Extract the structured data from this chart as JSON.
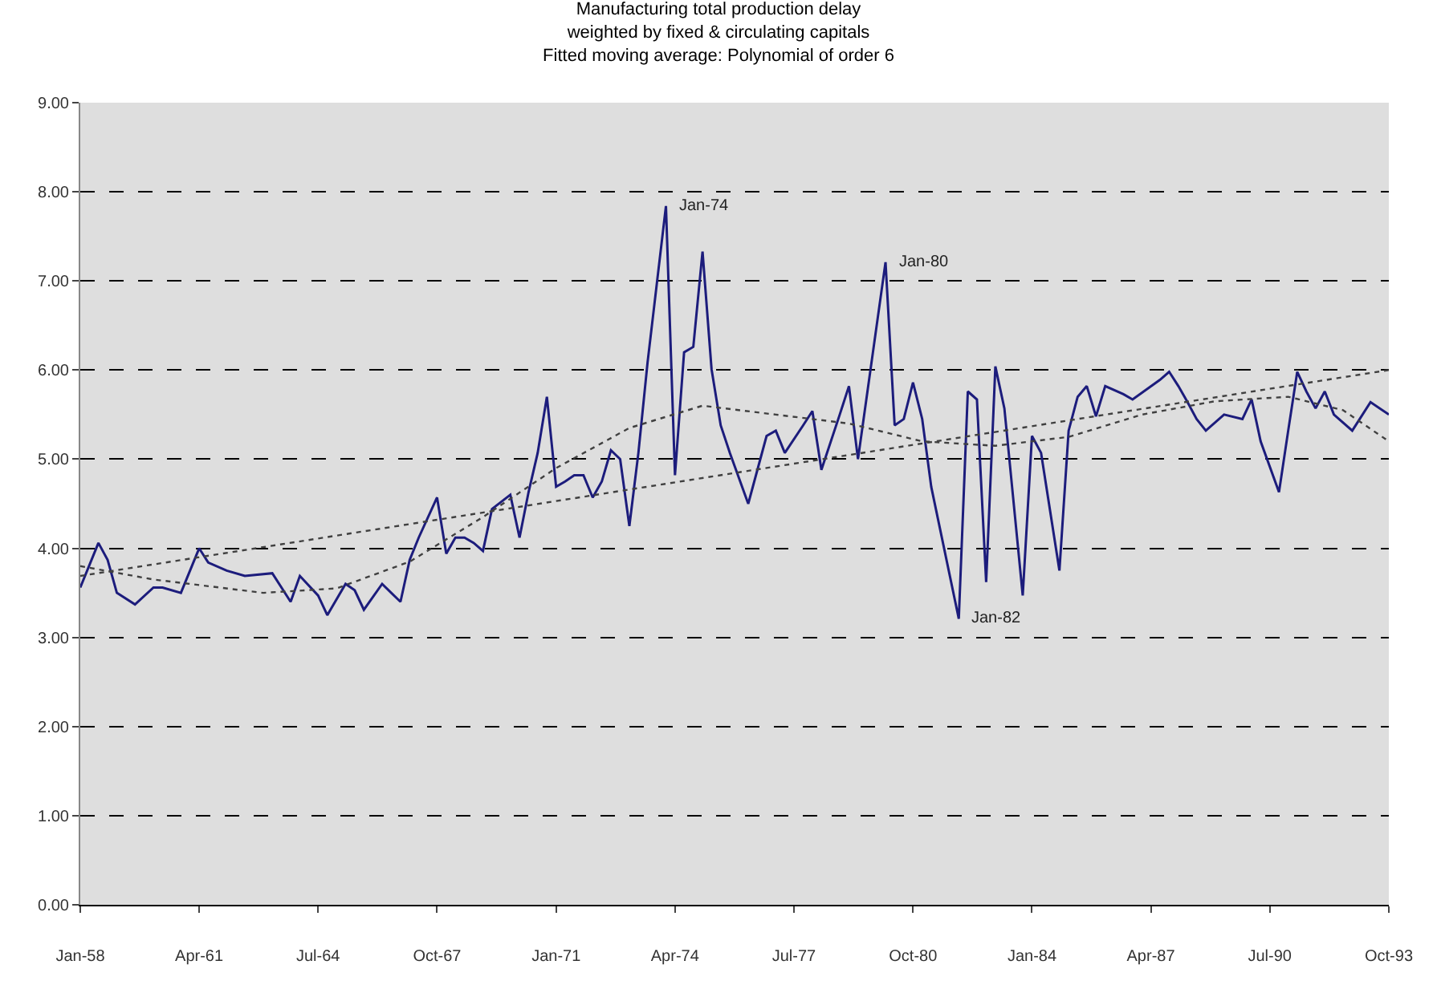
{
  "chart_data": {
    "type": "line",
    "title": "Manufacturing total production delay\nweighted by fixed & circulating capitals\nFitted moving average: Polynomial of order 6",
    "series": [
      {
        "color": "#1c1c7c",
        "x": [
          "1958-01",
          "1958-07",
          "1958-10",
          "1959-01",
          "1959-07",
          "1960-01",
          "1960-04",
          "1960-10",
          "1961-04",
          "1961-07",
          "1962-01",
          "1962-07",
          "1963-04",
          "1963-10",
          "1964-01",
          "1964-07",
          "1964-10",
          "1965-04",
          "1965-07",
          "1965-10",
          "1966-04",
          "1966-07",
          "1966-10",
          "1967-01",
          "1967-04",
          "1967-10",
          "1968-01",
          "1968-04",
          "1968-07",
          "1968-10",
          "1969-01",
          "1969-04",
          "1969-10",
          "1970-01",
          "1970-04",
          "1970-07",
          "1970-10",
          "1971-01",
          "1971-04",
          "1971-07",
          "1971-10",
          "1972-01",
          "1972-04",
          "1972-07",
          "1972-10",
          "1973-01",
          "1973-04",
          "1973-07",
          "1973-10",
          "1974-01",
          "1974-04",
          "1974-07",
          "1974-10",
          "1975-01",
          "1975-04",
          "1975-07",
          "1975-10",
          "1976-04",
          "1976-10",
          "1977-01",
          "1977-04",
          "1977-10",
          "1978-01",
          "1978-04",
          "1978-10",
          "1979-01",
          "1979-04",
          "1980-01",
          "1980-04",
          "1980-07",
          "1980-10",
          "1981-01",
          "1981-04",
          "1982-01",
          "1982-04",
          "1982-07",
          "1982-10",
          "1983-01",
          "1983-04",
          "1983-10",
          "1984-01",
          "1984-04",
          "1984-10",
          "1985-01",
          "1985-04",
          "1985-07",
          "1985-10",
          "1986-01",
          "1986-07",
          "1986-10",
          "1987-07",
          "1987-10",
          "1988-01",
          "1988-04",
          "1988-07",
          "1988-10",
          "1989-04",
          "1989-10",
          "1990-01",
          "1990-04",
          "1990-10",
          "1991-01",
          "1991-04",
          "1991-07",
          "1991-10",
          "1992-01",
          "1992-04",
          "1992-10",
          "1993-04",
          "1993-10"
        ],
        "values": [
          3.56,
          4.06,
          3.87,
          3.5,
          3.37,
          3.56,
          3.56,
          3.5,
          4.0,
          3.84,
          3.75,
          3.69,
          3.72,
          3.4,
          3.69,
          3.47,
          3.25,
          3.6,
          3.53,
          3.31,
          3.6,
          3.5,
          3.4,
          3.87,
          4.12,
          4.57,
          3.94,
          4.12,
          4.12,
          4.06,
          3.97,
          4.44,
          4.6,
          4.12,
          4.63,
          5.07,
          5.7,
          4.69,
          4.75,
          4.82,
          4.82,
          4.57,
          4.75,
          5.1,
          5.0,
          4.25,
          5.07,
          6.08,
          6.96,
          7.84,
          4.82,
          6.2,
          6.26,
          7.33,
          6.01,
          5.38,
          5.07,
          4.5,
          5.26,
          5.32,
          5.07,
          5.38,
          5.54,
          4.88,
          5.5,
          5.82,
          5.0,
          7.21,
          5.38,
          5.45,
          5.86,
          5.45,
          4.69,
          3.21,
          5.76,
          5.67,
          3.62,
          6.04,
          5.57,
          3.47,
          5.26,
          5.07,
          3.75,
          5.32,
          5.7,
          5.82,
          5.48,
          5.82,
          5.73,
          5.67,
          5.89,
          5.98,
          5.82,
          5.64,
          5.45,
          5.32,
          5.5,
          5.45,
          5.67,
          5.2,
          4.63,
          5.32,
          5.98,
          5.76,
          5.57,
          5.76,
          5.5,
          5.32,
          5.64,
          5.5
        ]
      },
      {
        "type": "line",
        "line_style": "dotted",
        "color": "#404040",
        "x": [
          "1958-01",
          "1960-01",
          "1963-01",
          "1965-01",
          "1967-01",
          "1969-01",
          "1971-01",
          "1973-01",
          "1975-01",
          "1977-01",
          "1979-01",
          "1981-01",
          "1983-01",
          "1985-01",
          "1987-01",
          "1989-01",
          "1991-01",
          "1992-07",
          "1993-10"
        ],
        "values": [
          3.8,
          3.65,
          3.5,
          3.55,
          3.85,
          4.35,
          4.9,
          5.35,
          5.6,
          5.5,
          5.4,
          5.2,
          5.15,
          5.25,
          5.5,
          5.65,
          5.7,
          5.55,
          5.2
        ]
      },
      {
        "type": "line",
        "line_style": "dotted",
        "color": "#404040",
        "x": [
          "1958-01",
          "1993-10"
        ],
        "values": [
          3.69,
          6.0
        ]
      }
    ],
    "xlim": [
      "1958-01",
      "1993-10"
    ],
    "xticks": [
      {
        "value": "1958-01",
        "label": "Jan-58"
      },
      {
        "value": "1961-04",
        "label": "Apr-61"
      },
      {
        "value": "1964-07",
        "label": "Jul-64"
      },
      {
        "value": "1967-10",
        "label": "Oct-67"
      },
      {
        "value": "1971-01",
        "label": "Jan-71"
      },
      {
        "value": "1974-04",
        "label": "Apr-74"
      },
      {
        "value": "1977-07",
        "label": "Jul-77"
      },
      {
        "value": "1980-10",
        "label": "Oct-80"
      },
      {
        "value": "1984-01",
        "label": "Jan-84"
      },
      {
        "value": "1987-04",
        "label": "Apr-87"
      },
      {
        "value": "1990-07",
        "label": "Jul-90"
      },
      {
        "value": "1993-10",
        "label": "Oct-93"
      }
    ],
    "ylim": [
      0,
      9
    ],
    "yticks": [
      {
        "value": 0,
        "label": "0.00"
      },
      {
        "value": 1,
        "label": "1.00"
      },
      {
        "value": 2,
        "label": "2.00"
      },
      {
        "value": 3,
        "label": "3.00"
      },
      {
        "value": 4,
        "label": "4.00"
      },
      {
        "value": 5,
        "label": "5.00"
      },
      {
        "value": 6,
        "label": "6.00"
      },
      {
        "value": 7,
        "label": "7.00"
      },
      {
        "value": 8,
        "label": "8.00"
      },
      {
        "value": 9,
        "label": "9.00"
      }
    ],
    "grid": "y",
    "marker": "none",
    "line_style": "solid",
    "annotations": [
      {
        "text": "Jan-74",
        "x": "1974-01",
        "y": 7.84
      },
      {
        "text": "Jan-80",
        "x": "1980-01",
        "y": 7.21
      },
      {
        "text": "Jan-82",
        "x": "1982-01",
        "y": 3.21
      }
    ]
  }
}
